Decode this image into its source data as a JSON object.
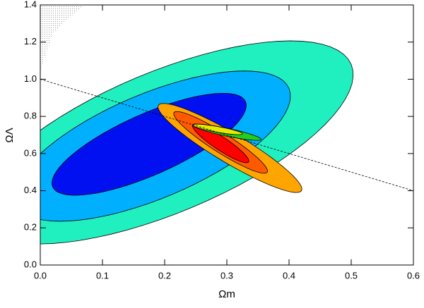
{
  "chart_data": {
    "type": "contour",
    "xlabel": "Ωm",
    "ylabel": "ΩΛ",
    "xlim": [
      0,
      0.6
    ],
    "ylim": [
      0,
      1.4
    ],
    "xticks": [
      {
        "value": 0,
        "label": "0.0"
      },
      0.1,
      0.2,
      0.3,
      0.4,
      0.5,
      0.6
    ],
    "yticks": [
      {
        "value": 0,
        "label": "0.0"
      },
      0.2,
      0.4,
      0.6,
      0.8,
      {
        "value": 1,
        "label": "1.0"
      },
      1.2,
      1.4
    ],
    "contours": [
      {
        "color": "#20f0c0",
        "center": [
          0.2,
          0.66
        ],
        "major": [
          0.3,
          0.42
        ],
        "minor": [
          0.044,
          -0.35
        ]
      },
      {
        "color": "#00b0ff",
        "center": [
          0.18,
          0.64
        ],
        "major": [
          0.22,
          0.31
        ],
        "minor": [
          0.032,
          -0.26
        ]
      },
      {
        "color": "#0010f0",
        "center": [
          0.175,
          0.65
        ],
        "major": [
          0.155,
          0.23
        ],
        "minor": [
          0.02,
          -0.15
        ]
      },
      {
        "color": "#ffa500",
        "center": [
          0.305,
          0.63
        ],
        "major": [
          0.115,
          -0.23
        ],
        "minor": [
          -0.0125,
          -0.068
        ]
      },
      {
        "color": "#ff5a00",
        "center": [
          0.29,
          0.66
        ],
        "major": [
          0.075,
          -0.16
        ],
        "minor": [
          -0.008,
          -0.045
        ]
      },
      {
        "color": "#ff0000",
        "center": [
          0.29,
          0.655
        ],
        "major": [
          0.045,
          -0.1
        ],
        "minor": [
          -0.006,
          -0.03
        ]
      },
      {
        "color": "#20d020",
        "center": [
          0.3,
          0.715
        ],
        "major": [
          0.055,
          -0.04
        ],
        "minor": [
          -0.005,
          -0.018
        ]
      },
      {
        "color": "#e8e800",
        "center": [
          0.285,
          0.73
        ],
        "major": [
          0.04,
          -0.025
        ],
        "minor": [
          -0.004,
          -0.013
        ]
      }
    ],
    "flat_line": {
      "x": [
        0,
        0.6
      ],
      "y": [
        1,
        0.4
      ]
    },
    "shaded_region": {
      "x": [
        0,
        0.02,
        0.07,
        0
      ],
      "y": [
        1.04,
        1.25,
        1.4,
        1.4
      ]
    }
  }
}
